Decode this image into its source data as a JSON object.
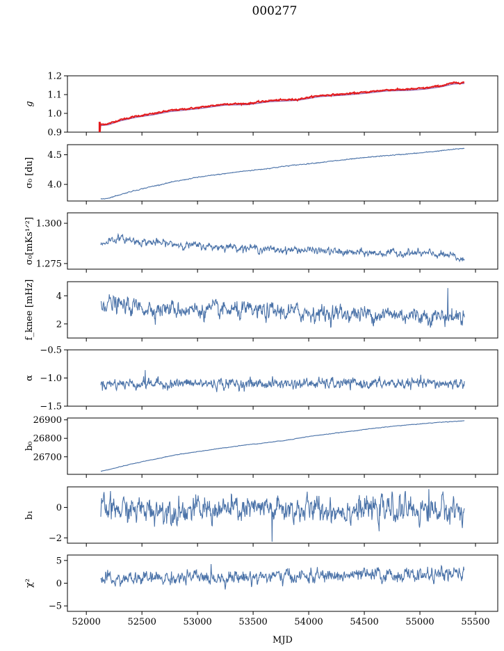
{
  "figure": {
    "title": "000277",
    "xlabel": "MJD"
  },
  "colors": {
    "series": "#4a72a8",
    "fit": "#e41a1c",
    "fit_underlay": "#8e5ca8"
  },
  "chart_data": [
    {
      "id": "g",
      "type": "line",
      "ylabel": "g",
      "ylabel_math": true,
      "xlim": [
        51830,
        55700
      ],
      "ylim": [
        0.9,
        1.2
      ],
      "yticks": [
        0.9,
        1.0,
        1.1,
        1.2
      ],
      "yticklabels": [
        "0.9",
        "1.0",
        "1.1",
        "1.2"
      ],
      "shape": {
        "kind": "trend",
        "points": [
          [
            52120,
            0.94
          ],
          [
            52200,
            0.945
          ],
          [
            52300,
            0.965
          ],
          [
            52450,
            0.985
          ],
          [
            52600,
            0.998
          ],
          [
            52750,
            1.015
          ],
          [
            53000,
            1.03
          ],
          [
            53250,
            1.05
          ],
          [
            53450,
            1.052
          ],
          [
            53650,
            1.068
          ],
          [
            53900,
            1.075
          ],
          [
            54100,
            1.095
          ],
          [
            54300,
            1.102
          ],
          [
            54500,
            1.112
          ],
          [
            54700,
            1.125
          ],
          [
            54900,
            1.128
          ],
          [
            55050,
            1.135
          ],
          [
            55200,
            1.148
          ],
          [
            55300,
            1.162
          ],
          [
            55400,
            1.165
          ]
        ],
        "noise": 0.002,
        "spikes": [
          [
            52125,
            0.905
          ]
        ]
      },
      "red_overlay": true
    },
    {
      "id": "sigma0_du",
      "type": "line",
      "ylabel": "σ₀ [du]",
      "xlim": [
        51830,
        55700
      ],
      "ylim": [
        3.72,
        4.67
      ],
      "yticks": [
        4.0,
        4.5
      ],
      "yticklabels": [
        "4.0",
        "4.5"
      ],
      "shape": {
        "kind": "trend",
        "points": [
          [
            52130,
            3.75
          ],
          [
            52200,
            3.77
          ],
          [
            52400,
            3.88
          ],
          [
            52600,
            3.97
          ],
          [
            52800,
            4.05
          ],
          [
            53000,
            4.12
          ],
          [
            53200,
            4.17
          ],
          [
            53400,
            4.22
          ],
          [
            53600,
            4.26
          ],
          [
            53800,
            4.31
          ],
          [
            54000,
            4.35
          ],
          [
            54200,
            4.39
          ],
          [
            54400,
            4.43
          ],
          [
            54600,
            4.47
          ],
          [
            54800,
            4.5
          ],
          [
            55000,
            4.53
          ],
          [
            55200,
            4.57
          ],
          [
            55400,
            4.61
          ]
        ],
        "noise": 0.004,
        "spikes": []
      }
    },
    {
      "id": "sigma0_mks",
      "type": "line",
      "ylabel": "σ₀[mKs¹ᐟ²]",
      "xlim": [
        51830,
        55700
      ],
      "ylim": [
        1.2715,
        1.3065
      ],
      "yticks": [
        1.275,
        1.3
      ],
      "yticklabels": [
        "1.275",
        "1.300"
      ],
      "shape": {
        "kind": "trend",
        "points": [
          [
            52130,
            1.2865
          ],
          [
            52200,
            1.2895
          ],
          [
            52300,
            1.2905
          ],
          [
            52500,
            1.2885
          ],
          [
            52700,
            1.2875
          ],
          [
            52900,
            1.2865
          ],
          [
            53100,
            1.2855
          ],
          [
            53300,
            1.2855
          ],
          [
            53500,
            1.2845
          ],
          [
            53700,
            1.2835
          ],
          [
            53900,
            1.2835
          ],
          [
            54100,
            1.283
          ],
          [
            54300,
            1.282
          ],
          [
            54500,
            1.2815
          ],
          [
            54700,
            1.2815
          ],
          [
            54900,
            1.2815
          ],
          [
            55100,
            1.281
          ],
          [
            55300,
            1.2795
          ],
          [
            55400,
            1.2765
          ]
        ],
        "noise": 0.0012,
        "spikes": []
      }
    },
    {
      "id": "fknee",
      "type": "line",
      "ylabel": "f_knee [mHz]",
      "xlim": [
        51830,
        55700
      ],
      "ylim": [
        1.0,
        5.0
      ],
      "yticks": [
        2,
        4
      ],
      "yticklabels": [
        "2",
        "4"
      ],
      "shape": {
        "kind": "trend",
        "points": [
          [
            52130,
            3.6
          ],
          [
            52300,
            3.3
          ],
          [
            52600,
            3.1
          ],
          [
            53000,
            3.0
          ],
          [
            53400,
            2.9
          ],
          [
            53800,
            2.85
          ],
          [
            54200,
            2.75
          ],
          [
            54600,
            2.7
          ],
          [
            55000,
            2.6
          ],
          [
            55400,
            2.5
          ]
        ],
        "noise": 0.32,
        "spikes": [
          [
            55250,
            4.55
          ]
        ]
      }
    },
    {
      "id": "alpha",
      "type": "line",
      "ylabel": "α",
      "xlim": [
        51830,
        55700
      ],
      "ylim": [
        -1.5,
        -0.5
      ],
      "yticks": [
        -1.5,
        -1.0,
        -0.5
      ],
      "yticklabels": [
        "−1.5",
        "−1.0",
        "−0.5"
      ],
      "shape": {
        "kind": "trend",
        "points": [
          [
            52130,
            -1.1
          ],
          [
            55400,
            -1.1
          ]
        ],
        "noise": 0.05,
        "spikes": [
          [
            52530,
            -0.86
          ]
        ]
      }
    },
    {
      "id": "b0",
      "type": "line",
      "ylabel": "b₀",
      "xlim": [
        51830,
        55700
      ],
      "ylim": [
        26605,
        26910
      ],
      "yticks": [
        26700,
        26800,
        26900
      ],
      "yticklabels": [
        "26700",
        "26800",
        "26900"
      ],
      "shape": {
        "kind": "trend",
        "points": [
          [
            52130,
            26623
          ],
          [
            52200,
            26630
          ],
          [
            52400,
            26660
          ],
          [
            52600,
            26685
          ],
          [
            52800,
            26710
          ],
          [
            53000,
            26728
          ],
          [
            53200,
            26745
          ],
          [
            53400,
            26762
          ],
          [
            53600,
            26775
          ],
          [
            53800,
            26790
          ],
          [
            54000,
            26810
          ],
          [
            54200,
            26825
          ],
          [
            54400,
            26840
          ],
          [
            54600,
            26855
          ],
          [
            54800,
            26868
          ],
          [
            55000,
            26878
          ],
          [
            55200,
            26888
          ],
          [
            55400,
            26895
          ]
        ],
        "noise": 0.8,
        "spikes": []
      }
    },
    {
      "id": "b1",
      "type": "line",
      "ylabel": "b₁",
      "xlim": [
        51830,
        55700
      ],
      "ylim": [
        -2.35,
        1.35
      ],
      "yticks": [
        -2,
        0
      ],
      "yticklabels": [
        "−2",
        "0"
      ],
      "shape": {
        "kind": "trend",
        "points": [
          [
            52130,
            -0.15
          ],
          [
            55400,
            -0.15
          ]
        ],
        "noise": 0.45,
        "spikes": [
          [
            53670,
            -2.25
          ],
          [
            55080,
            1.2
          ]
        ]
      }
    },
    {
      "id": "chi2",
      "type": "line",
      "ylabel": "χ²",
      "xlim": [
        51830,
        55700
      ],
      "ylim": [
        -6.2,
        6.2
      ],
      "yticks": [
        -5,
        0,
        5
      ],
      "yticklabels": [
        "−5",
        "0",
        "5"
      ],
      "xticks": [
        52000,
        52500,
        53000,
        53500,
        54000,
        54500,
        55000,
        55500
      ],
      "xticklabels": [
        "52000",
        "52500",
        "53000",
        "53500",
        "54000",
        "54500",
        "55000",
        "55500"
      ],
      "shape": {
        "kind": "trend",
        "points": [
          [
            52130,
            0.6
          ],
          [
            52500,
            1.0
          ],
          [
            53000,
            1.2
          ],
          [
            53500,
            1.4
          ],
          [
            54000,
            1.5
          ],
          [
            54500,
            1.7
          ],
          [
            55000,
            1.8
          ],
          [
            55400,
            1.9
          ]
        ],
        "noise": 0.8,
        "spikes": []
      }
    }
  ]
}
